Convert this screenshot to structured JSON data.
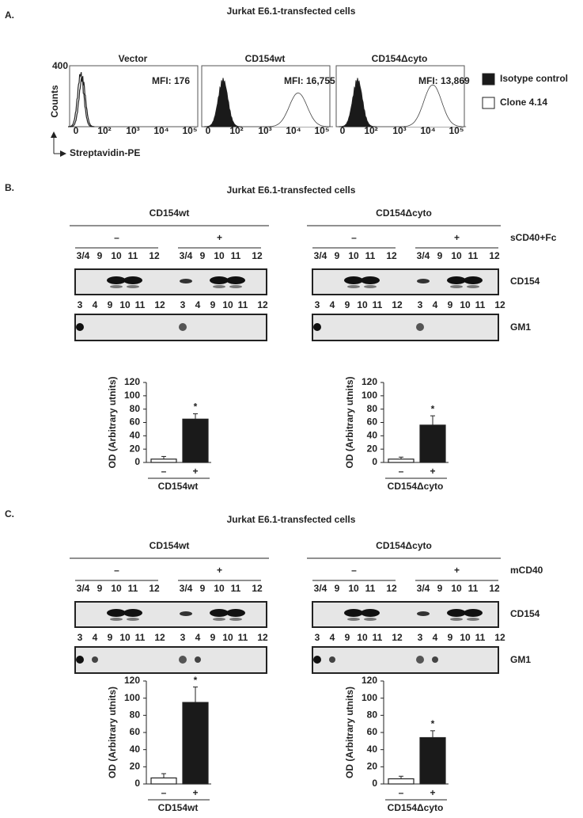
{
  "panel_a": {
    "label": "A.",
    "title": "Jurkat E6.1-transfected cells",
    "y_axis_label": "Counts",
    "y_max_label": "400",
    "x_axis_label": "Streptavidin-PE",
    "x_tick_labels": [
      "0",
      "10²",
      "10³",
      "10⁴",
      "10⁵"
    ],
    "histograms": [
      {
        "title": "Vector",
        "mfi": "MFI: 176"
      },
      {
        "title": "CD154wt",
        "mfi": "MFI: 16,755"
      },
      {
        "title": "CD154Δcyto",
        "mfi": "MFI: 13,869"
      }
    ],
    "legend": [
      {
        "label": "Isotype control",
        "color": "#1a1a1a"
      },
      {
        "label": "Clone 4.14",
        "color": "#ffffff"
      }
    ]
  },
  "panel_b": {
    "label": "B.",
    "title": "Jurkat E6.1-transfected cells",
    "treatment": "sCD40+Fc",
    "row_labels": [
      "CD154",
      "GM1"
    ],
    "columns": [
      {
        "title": "CD154wt",
        "groups": [
          {
            "sign": "–",
            "top_fractions": [
              "3/4",
              "9",
              "10",
              "11",
              "12"
            ],
            "bottom_fractions": [
              "3",
              "4",
              "9",
              "10",
              "11",
              "12"
            ]
          },
          {
            "sign": "+",
            "top_fractions": [
              "3/4",
              "9",
              "10",
              "11",
              "12"
            ],
            "bottom_fractions": [
              "3",
              "4",
              "9",
              "10",
              "11",
              "12"
            ]
          }
        ],
        "chart": {
          "type": "bar",
          "y_label": "OD (Arbitrary utnits)",
          "categories": [
            "–",
            "+"
          ],
          "values": [
            5,
            65
          ],
          "errors": [
            4,
            8
          ],
          "colors": [
            "#ffffff",
            "#1a1a1a"
          ],
          "ylim": [
            0,
            120
          ],
          "yticks": [
            0,
            20,
            40,
            60,
            80,
            100,
            120
          ],
          "significance": "*",
          "x_label": "CD154wt"
        }
      },
      {
        "title": "CD154Δcyto",
        "groups": [
          {
            "sign": "–",
            "top_fractions": [
              "3/4",
              "9",
              "10",
              "11",
              "12"
            ],
            "bottom_fractions": [
              "3",
              "4",
              "9",
              "10",
              "11",
              "12"
            ]
          },
          {
            "sign": "+",
            "top_fractions": [
              "3/4",
              "9",
              "10",
              "11",
              "12"
            ],
            "bottom_fractions": [
              "3",
              "4",
              "9",
              "10",
              "11",
              "12"
            ]
          }
        ],
        "chart": {
          "type": "bar",
          "y_label": "OD (Arbitrary utnits)",
          "categories": [
            "–",
            "+"
          ],
          "values": [
            5,
            56
          ],
          "errors": [
            3,
            14
          ],
          "colors": [
            "#ffffff",
            "#1a1a1a"
          ],
          "ylim": [
            0,
            120
          ],
          "yticks": [
            0,
            20,
            40,
            60,
            80,
            100,
            120
          ],
          "significance": "*",
          "x_label": "CD154Δcyto"
        }
      }
    ]
  },
  "panel_c": {
    "label": "C.",
    "title": "Jurkat E6.1-transfected cells",
    "treatment": "mCD40",
    "row_labels": [
      "CD154",
      "GM1"
    ],
    "columns": [
      {
        "title": "CD154wt",
        "groups": [
          {
            "sign": "–",
            "top_fractions": [
              "3/4",
              "9",
              "10",
              "11",
              "12"
            ],
            "bottom_fractions": [
              "3",
              "4",
              "9",
              "10",
              "11",
              "12"
            ]
          },
          {
            "sign": "+",
            "top_fractions": [
              "3/4",
              "9",
              "10",
              "11",
              "12"
            ],
            "bottom_fractions": [
              "3",
              "4",
              "9",
              "10",
              "11",
              "12"
            ]
          }
        ],
        "chart": {
          "type": "bar",
          "y_label": "OD (Arbitrary utnits)",
          "categories": [
            "–",
            "+"
          ],
          "values": [
            7,
            95
          ],
          "errors": [
            5,
            18
          ],
          "colors": [
            "#ffffff",
            "#1a1a1a"
          ],
          "ylim": [
            0,
            120
          ],
          "yticks": [
            0,
            20,
            40,
            60,
            80,
            100,
            120
          ],
          "significance": "*",
          "x_label": "CD154wt"
        }
      },
      {
        "title": "CD154Δcyto",
        "groups": [
          {
            "sign": "–",
            "top_fractions": [
              "3/4",
              "9",
              "10",
              "11",
              "12"
            ],
            "bottom_fractions": [
              "3",
              "4",
              "9",
              "10",
              "11",
              "12"
            ]
          },
          {
            "sign": "+",
            "top_fractions": [
              "3/4",
              "9",
              "10",
              "11",
              "12"
            ],
            "bottom_fractions": [
              "3",
              "4",
              "9",
              "10",
              "11",
              "12"
            ]
          }
        ],
        "chart": {
          "type": "bar",
          "y_label": "OD (Arbitrary utnits)",
          "categories": [
            "–",
            "+"
          ],
          "values": [
            6,
            54
          ],
          "errors": [
            3,
            8
          ],
          "colors": [
            "#ffffff",
            "#1a1a1a"
          ],
          "ylim": [
            0,
            120
          ],
          "yticks": [
            0,
            20,
            40,
            60,
            80,
            100,
            120
          ],
          "significance": "*",
          "x_label": "CD154Δcyto"
        }
      }
    ]
  }
}
